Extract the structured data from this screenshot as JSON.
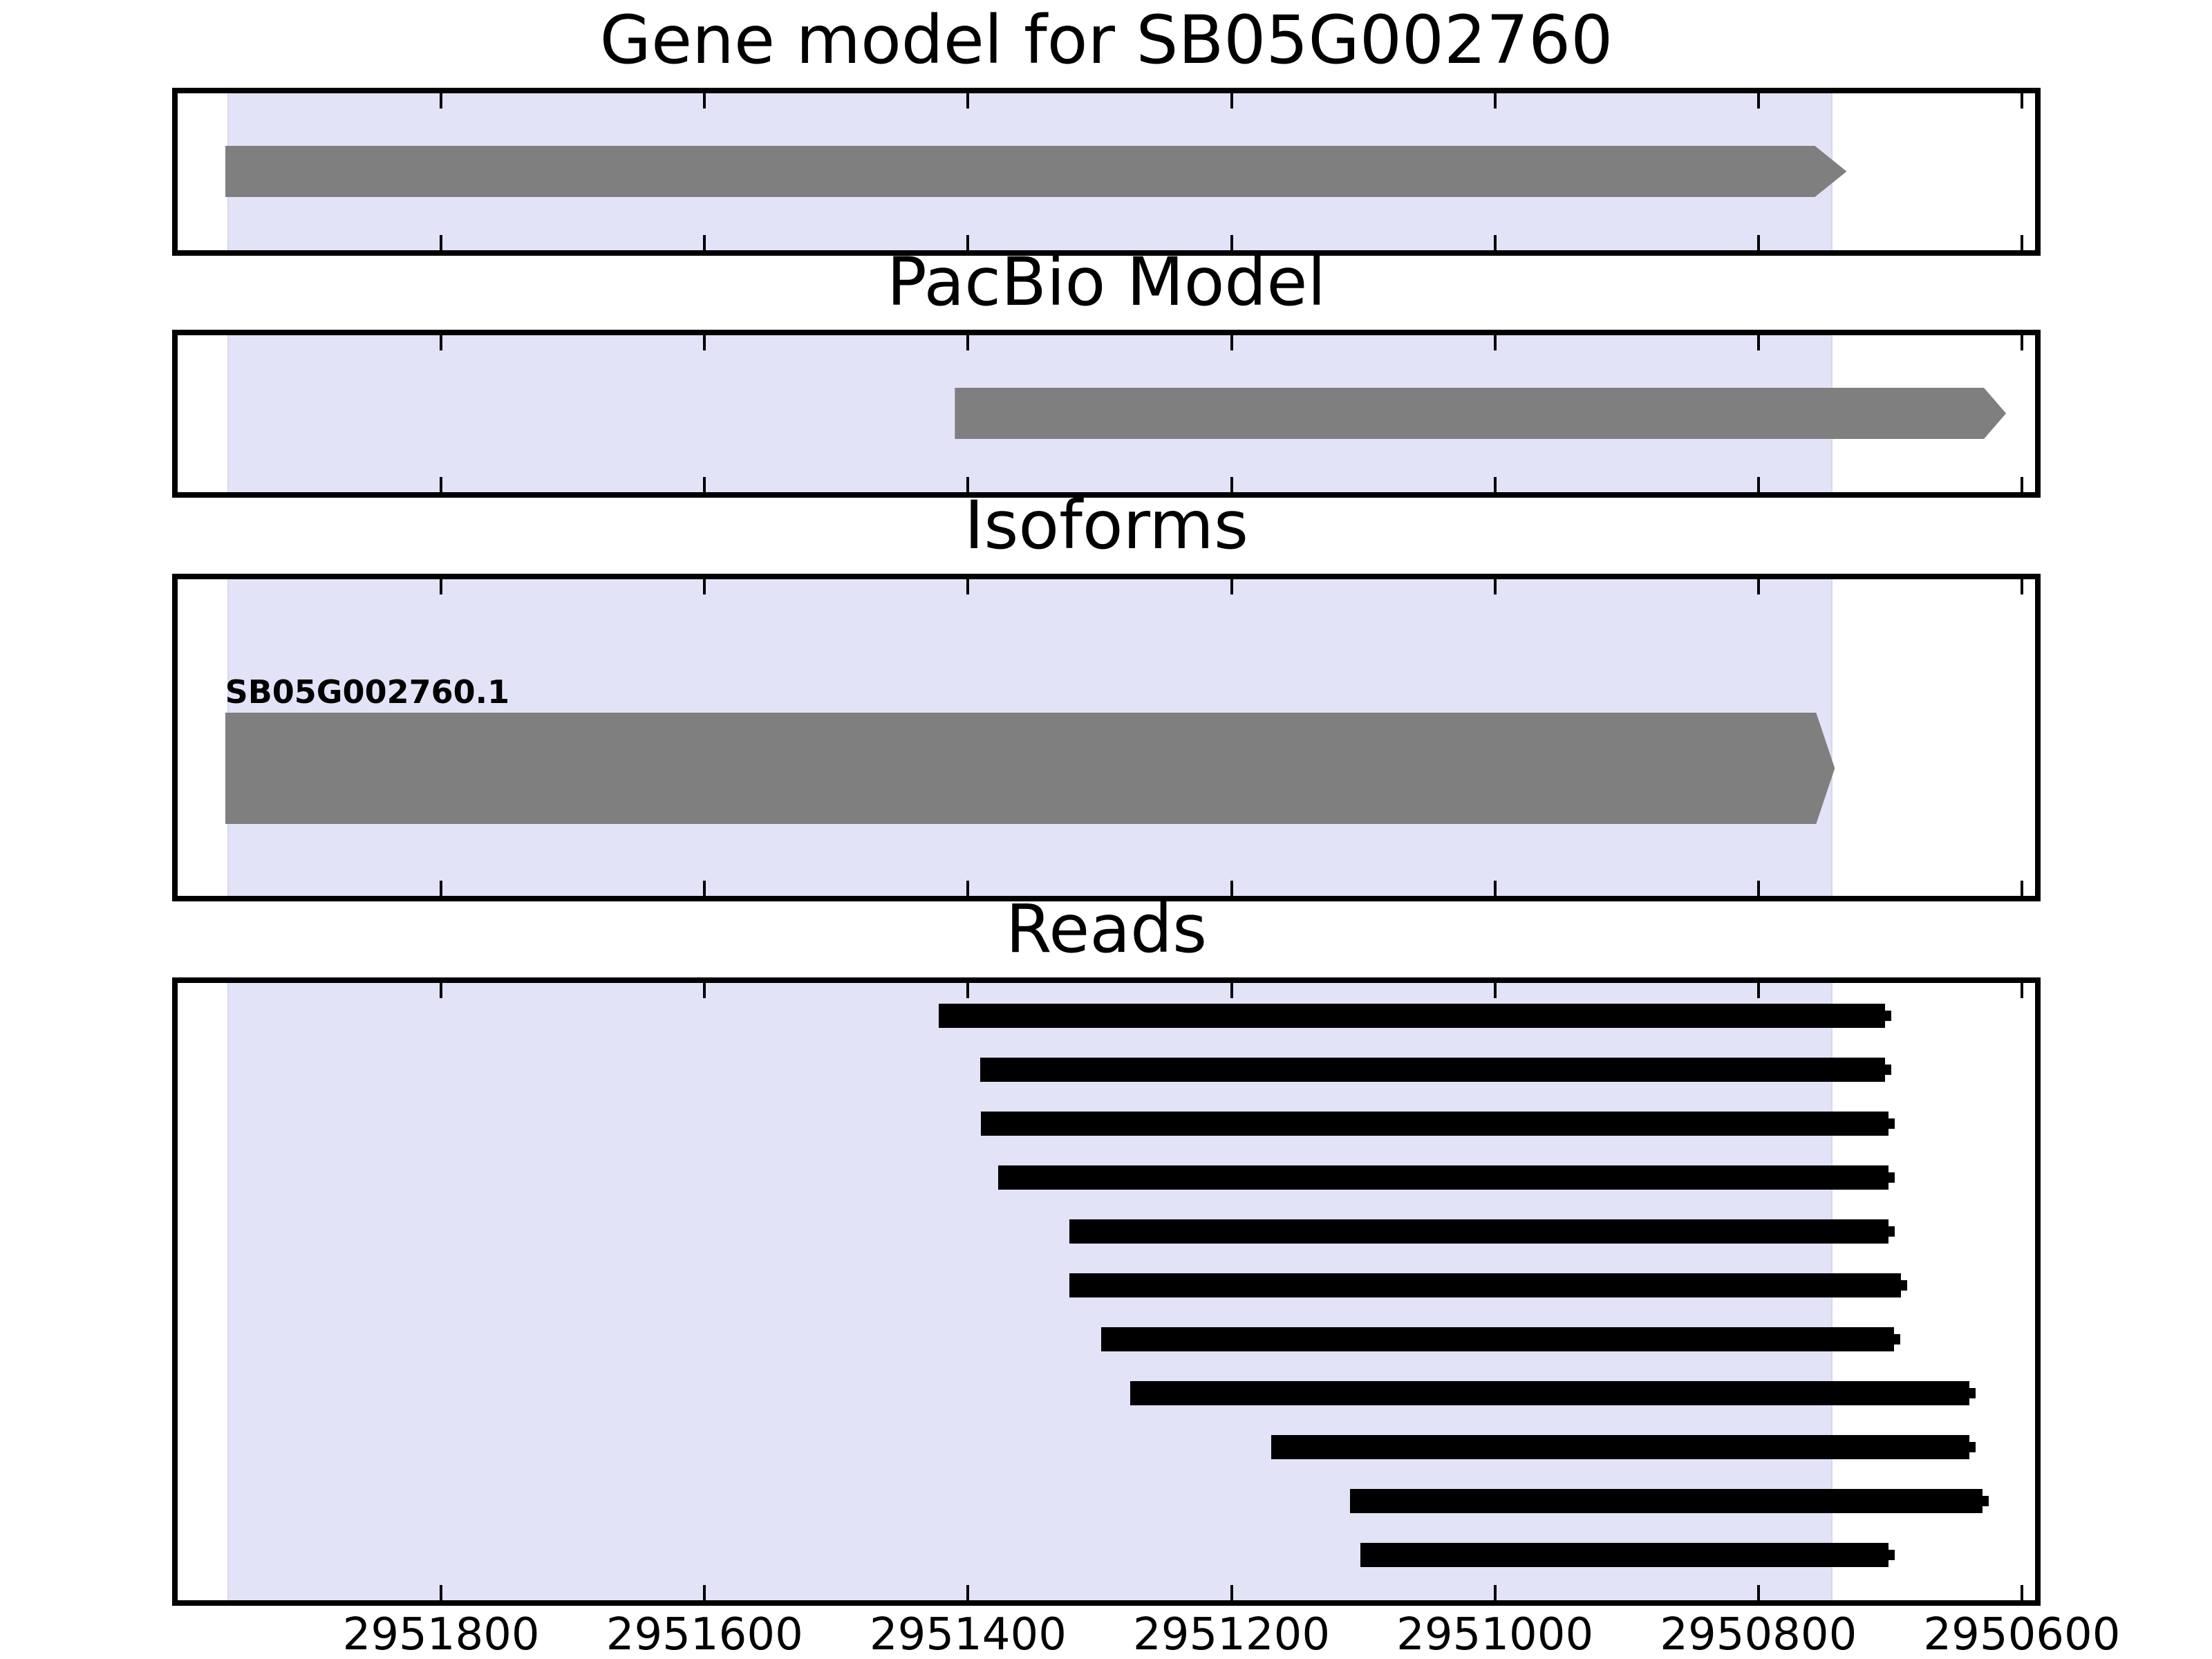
{
  "chart_data": {
    "type": "gene-model-tracks",
    "figure_title": "Gene model for SB05G002760",
    "x_axis": {
      "left_value": 2952000,
      "right_value": 2950590,
      "inverted": true,
      "tick_values": [
        2951800,
        2951600,
        2951400,
        2951200,
        2951000,
        2950800,
        2950600
      ],
      "tick_labels": [
        "2951800",
        "2951600",
        "2951400",
        "2951200",
        "2951000",
        "2950800",
        "2950600"
      ]
    },
    "highlight_region": {
      "start": 2951962,
      "end": 2950744,
      "fill_color": "#e3e3f8",
      "edge_color": "#d6d6ef"
    },
    "colors": {
      "gene_feature": "#7f7f7f",
      "read_feature": "#000000",
      "spine": "#000000",
      "text": "#000000",
      "background": "#ffffff"
    },
    "tracks": [
      {
        "title": "Gene model for SB05G002760",
        "kind": "gene",
        "features": [
          {
            "name": "SB05G002760",
            "start": 2951964,
            "end": 2950733,
            "head_length": 24,
            "direction": "right",
            "color": "#7f7f7f"
          }
        ]
      },
      {
        "title": "PacBio Model",
        "kind": "model",
        "features": [
          {
            "name": "PacBio model",
            "start": 2951410,
            "end": 2950612,
            "head_length": 17,
            "direction": "right",
            "color": "#7f7f7f"
          }
        ]
      },
      {
        "title": "Isoforms",
        "kind": "isoforms",
        "features": [
          {
            "name": "SB05G002760.1",
            "label": "SB05G002760.1",
            "start": 2951964,
            "end": 2950742,
            "head_length": 14,
            "direction": "right",
            "color": "#7f7f7f"
          }
        ]
      },
      {
        "title": "Reads",
        "kind": "reads",
        "arrow_direction": "right",
        "color": "#000000",
        "reads": [
          {
            "start": 2951422,
            "end": 2950704
          },
          {
            "start": 2951391,
            "end": 2950704
          },
          {
            "start": 2951390,
            "end": 2950701
          },
          {
            "start": 2951377,
            "end": 2950701
          },
          {
            "start": 2951323,
            "end": 2950701
          },
          {
            "start": 2951323,
            "end": 2950692
          },
          {
            "start": 2951299,
            "end": 2950697
          },
          {
            "start": 2951277,
            "end": 2950640
          },
          {
            "start": 2951170,
            "end": 2950640
          },
          {
            "start": 2951110,
            "end": 2950630
          },
          {
            "start": 2951102,
            "end": 2950701
          }
        ]
      }
    ]
  }
}
